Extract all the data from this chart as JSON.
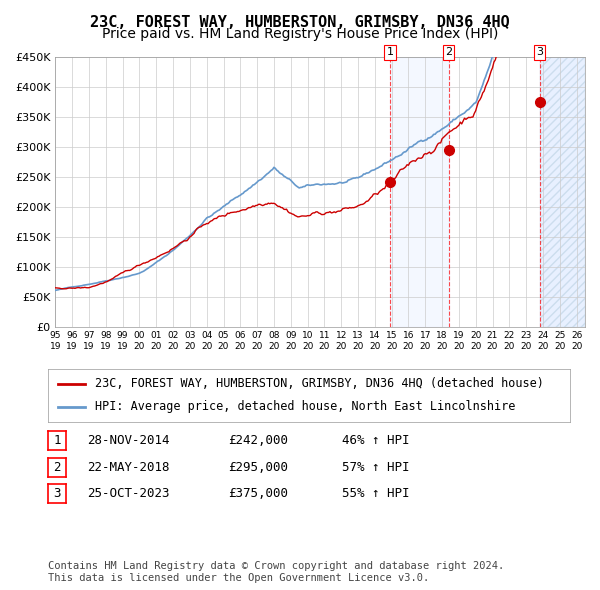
{
  "title": "23C, FOREST WAY, HUMBERSTON, GRIMSBY, DN36 4HQ",
  "subtitle": "Price paid vs. HM Land Registry's House Price Index (HPI)",
  "xlabel": "",
  "ylabel": "",
  "ylim": [
    0,
    450000
  ],
  "xlim": [
    1995.0,
    2026.5
  ],
  "yticks": [
    0,
    50000,
    100000,
    150000,
    200000,
    250000,
    300000,
    350000,
    400000,
    450000
  ],
  "ytick_labels": [
    "£0",
    "£50K",
    "£100K",
    "£150K",
    "£200K",
    "£250K",
    "£300K",
    "£350K",
    "£400K",
    "£450K"
  ],
  "xtick_years": [
    1995,
    1996,
    1997,
    1998,
    1999,
    2000,
    2001,
    2002,
    2003,
    2004,
    2005,
    2006,
    2007,
    2008,
    2009,
    2010,
    2011,
    2012,
    2013,
    2014,
    2015,
    2016,
    2017,
    2018,
    2019,
    2020,
    2021,
    2022,
    2023,
    2024,
    2025,
    2026
  ],
  "sale_color": "#cc0000",
  "hpi_color": "#6699cc",
  "background_color": "#ffffff",
  "grid_color": "#cccccc",
  "sale_label": "23C, FOREST WAY, HUMBERSTON, GRIMSBY, DN36 4HQ (detached house)",
  "hpi_label": "HPI: Average price, detached house, North East Lincolnshire",
  "transactions": [
    {
      "num": 1,
      "date": "28-NOV-2014",
      "price": 242000,
      "pct": "46%",
      "x": 2014.91
    },
    {
      "num": 2,
      "date": "22-MAY-2018",
      "price": 295000,
      "pct": "57%",
      "x": 2018.39
    },
    {
      "num": 3,
      "date": "25-OCT-2023",
      "price": 375000,
      "pct": "55%",
      "x": 2023.81
    }
  ],
  "shade_x1": 2014.91,
  "shade_x2": 2018.39,
  "footnote": "Contains HM Land Registry data © Crown copyright and database right 2024.\nThis data is licensed under the Open Government Licence v3.0.",
  "title_fontsize": 11,
  "subtitle_fontsize": 10,
  "tick_fontsize": 8,
  "legend_fontsize": 8.5,
  "table_fontsize": 9
}
